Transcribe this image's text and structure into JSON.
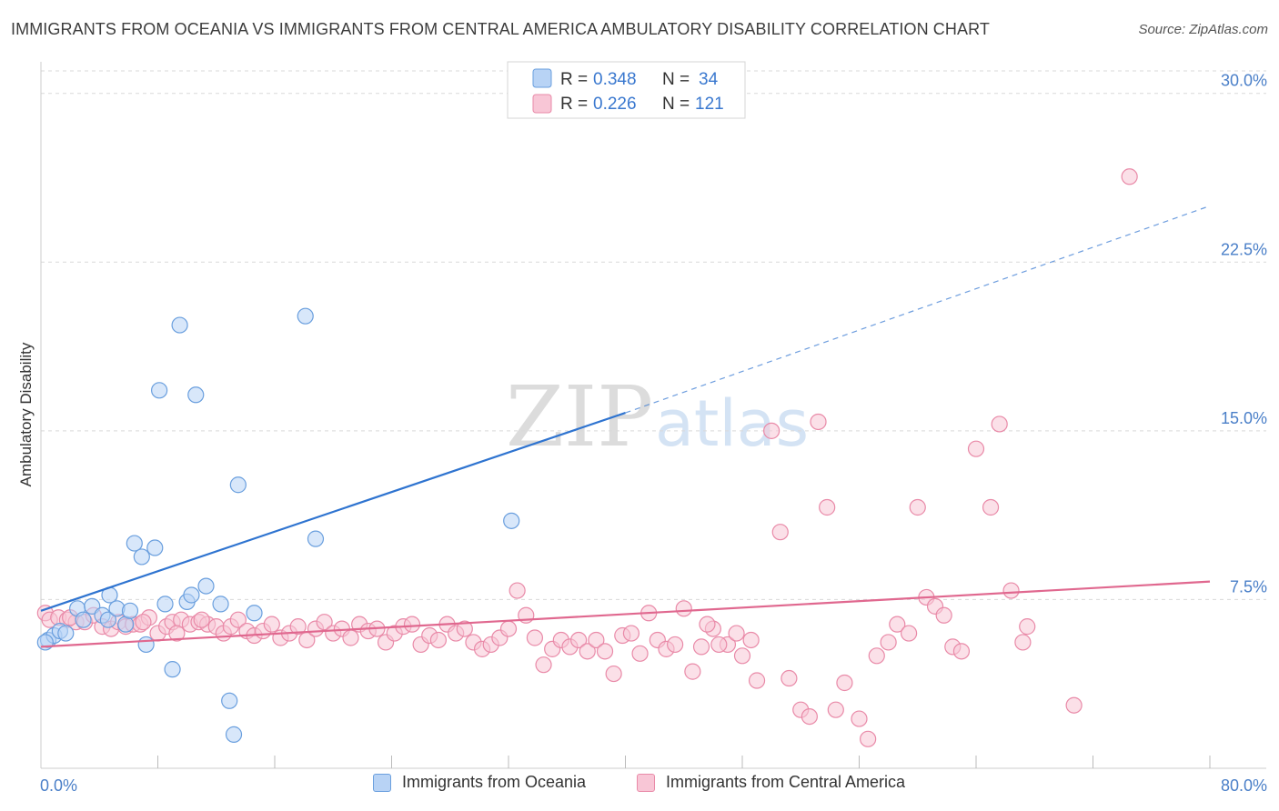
{
  "title": "IMMIGRANTS FROM OCEANIA VS IMMIGRANTS FROM CENTRAL AMERICA AMBULATORY DISABILITY CORRELATION CHART",
  "source": "Source: ZipAtlas.com",
  "watermark": {
    "zip": "ZIP",
    "atlas": "atlas"
  },
  "colors": {
    "oceania_fill": "#b8d3f5",
    "oceania_stroke": "#6a9fde",
    "oceania_line": "#2f74d0",
    "central_fill": "#f8c6d6",
    "central_stroke": "#e98aa8",
    "central_line": "#e0688f",
    "tick_text": "#4a7fc8",
    "grid": "#d9d9d9"
  },
  "legend_top": {
    "rows": [
      {
        "r_label": "R =",
        "r_value": "0.348",
        "n_label": "N =",
        "n_value": "34"
      },
      {
        "r_label": "R =",
        "r_value": "0.226",
        "n_label": "N =",
        "n_value": "121"
      }
    ]
  },
  "chart_data": {
    "type": "scatter",
    "ylabel": "Ambulatory Disability",
    "xlim": [
      0,
      80
    ],
    "ylim": [
      0,
      31
    ],
    "y_ticks": [
      {
        "value": 7.5,
        "label": "7.5%"
      },
      {
        "value": 15.0,
        "label": "15.0%"
      },
      {
        "value": 22.5,
        "label": "22.5%"
      },
      {
        "value": 30.0,
        "label": "30.0%"
      }
    ],
    "x_tick_labels": [
      {
        "value": 0,
        "label": "0.0%"
      },
      {
        "value": 80,
        "label": "80.0%"
      }
    ],
    "x_minor_ticks": [
      8,
      16,
      24,
      32,
      40,
      48,
      56,
      64,
      72,
      80
    ],
    "series": [
      {
        "name": "Immigrants from Oceania",
        "points": [
          [
            0.5,
            5.7
          ],
          [
            0.9,
            5.9
          ],
          [
            1.3,
            6.1
          ],
          [
            1.7,
            6.0
          ],
          [
            2.5,
            7.1
          ],
          [
            2.9,
            6.6
          ],
          [
            3.5,
            7.2
          ],
          [
            4.2,
            6.8
          ],
          [
            4.6,
            6.6
          ],
          [
            4.7,
            7.7
          ],
          [
            5.2,
            7.1
          ],
          [
            5.8,
            6.4
          ],
          [
            6.1,
            7.0
          ],
          [
            6.4,
            10.0
          ],
          [
            6.9,
            9.4
          ],
          [
            7.2,
            5.5
          ],
          [
            7.8,
            9.8
          ],
          [
            8.1,
            16.8
          ],
          [
            8.5,
            7.3
          ],
          [
            9.0,
            4.4
          ],
          [
            9.5,
            19.7
          ],
          [
            10.0,
            7.4
          ],
          [
            10.3,
            7.7
          ],
          [
            10.6,
            16.6
          ],
          [
            11.3,
            8.1
          ],
          [
            12.3,
            7.3
          ],
          [
            12.9,
            3.0
          ],
          [
            13.2,
            1.5
          ],
          [
            13.5,
            12.6
          ],
          [
            14.6,
            6.9
          ],
          [
            18.1,
            20.1
          ],
          [
            18.8,
            10.2
          ],
          [
            32.2,
            11.0
          ],
          [
            0.3,
            5.6
          ]
        ]
      },
      {
        "name": "Immigrants from Central America",
        "points": [
          [
            0.3,
            6.9
          ],
          [
            0.6,
            6.6
          ],
          [
            1.2,
            6.7
          ],
          [
            1.8,
            6.6
          ],
          [
            2.4,
            6.5
          ],
          [
            3.0,
            6.5
          ],
          [
            3.6,
            6.8
          ],
          [
            4.2,
            6.3
          ],
          [
            4.8,
            6.2
          ],
          [
            5.3,
            6.5
          ],
          [
            5.8,
            6.3
          ],
          [
            6.3,
            6.4
          ],
          [
            6.8,
            6.4
          ],
          [
            7.4,
            6.7
          ],
          [
            8.0,
            6.0
          ],
          [
            8.6,
            6.3
          ],
          [
            9.0,
            6.5
          ],
          [
            9.6,
            6.6
          ],
          [
            10.2,
            6.4
          ],
          [
            10.8,
            6.5
          ],
          [
            11.4,
            6.4
          ],
          [
            12.0,
            6.3
          ],
          [
            12.5,
            6.0
          ],
          [
            13.0,
            6.3
          ],
          [
            13.5,
            6.6
          ],
          [
            14.1,
            6.1
          ],
          [
            14.6,
            5.9
          ],
          [
            15.2,
            6.1
          ],
          [
            15.8,
            6.4
          ],
          [
            16.4,
            5.8
          ],
          [
            17.0,
            6.0
          ],
          [
            17.6,
            6.3
          ],
          [
            18.2,
            5.7
          ],
          [
            18.8,
            6.2
          ],
          [
            19.4,
            6.5
          ],
          [
            20.0,
            6.0
          ],
          [
            20.6,
            6.2
          ],
          [
            21.2,
            5.8
          ],
          [
            21.8,
            6.4
          ],
          [
            22.4,
            6.1
          ],
          [
            23.0,
            6.2
          ],
          [
            23.6,
            5.6
          ],
          [
            24.2,
            6.0
          ],
          [
            24.8,
            6.3
          ],
          [
            25.4,
            6.4
          ],
          [
            26.0,
            5.5
          ],
          [
            26.6,
            5.9
          ],
          [
            27.2,
            5.7
          ],
          [
            27.8,
            6.4
          ],
          [
            28.4,
            6.0
          ],
          [
            29.0,
            6.2
          ],
          [
            29.6,
            5.6
          ],
          [
            30.2,
            5.3
          ],
          [
            30.8,
            5.5
          ],
          [
            31.4,
            5.8
          ],
          [
            32.0,
            6.2
          ],
          [
            32.6,
            7.9
          ],
          [
            33.2,
            6.8
          ],
          [
            33.8,
            5.8
          ],
          [
            34.4,
            4.6
          ],
          [
            35.0,
            5.3
          ],
          [
            35.6,
            5.7
          ],
          [
            36.2,
            5.4
          ],
          [
            36.8,
            5.7
          ],
          [
            37.4,
            5.2
          ],
          [
            38.0,
            5.7
          ],
          [
            38.6,
            5.2
          ],
          [
            39.2,
            4.2
          ],
          [
            39.8,
            5.9
          ],
          [
            40.4,
            6.0
          ],
          [
            41.0,
            5.1
          ],
          [
            41.6,
            6.9
          ],
          [
            42.2,
            5.7
          ],
          [
            42.8,
            5.3
          ],
          [
            43.4,
            5.5
          ],
          [
            44.0,
            7.1
          ],
          [
            44.6,
            4.3
          ],
          [
            45.2,
            5.4
          ],
          [
            46.0,
            6.2
          ],
          [
            47.0,
            5.5
          ],
          [
            48.0,
            5.0
          ],
          [
            49.0,
            3.9
          ],
          [
            50.0,
            15.0
          ],
          [
            50.6,
            10.5
          ],
          [
            51.2,
            4.0
          ],
          [
            52.0,
            2.6
          ],
          [
            52.6,
            2.3
          ],
          [
            53.2,
            15.4
          ],
          [
            53.8,
            11.6
          ],
          [
            54.4,
            2.6
          ],
          [
            55.0,
            3.8
          ],
          [
            56.0,
            2.2
          ],
          [
            56.6,
            1.3
          ],
          [
            57.2,
            5.0
          ],
          [
            58.0,
            5.6
          ],
          [
            58.6,
            6.4
          ],
          [
            59.4,
            6.0
          ],
          [
            60.0,
            11.6
          ],
          [
            60.6,
            7.6
          ],
          [
            61.2,
            7.2
          ],
          [
            61.8,
            6.8
          ],
          [
            62.4,
            5.4
          ],
          [
            63.0,
            5.2
          ],
          [
            64.0,
            14.2
          ],
          [
            65.0,
            11.6
          ],
          [
            65.6,
            15.3
          ],
          [
            66.4,
            7.9
          ],
          [
            67.2,
            5.6
          ],
          [
            70.7,
            2.8
          ],
          [
            74.5,
            26.3
          ],
          [
            67.5,
            6.3
          ],
          [
            45.6,
            6.4
          ],
          [
            46.4,
            5.5
          ],
          [
            47.6,
            6.0
          ],
          [
            48.6,
            5.7
          ],
          [
            2.0,
            6.7
          ],
          [
            7.0,
            6.5
          ],
          [
            9.3,
            6.0
          ],
          [
            11.0,
            6.6
          ]
        ]
      }
    ],
    "trend_lines": [
      {
        "series": "Immigrants from Oceania",
        "solid": [
          [
            0,
            7.0
          ],
          [
            40,
            15.8
          ]
        ],
        "dashed": [
          [
            40,
            15.8
          ],
          [
            80,
            25.0
          ]
        ]
      },
      {
        "series": "Immigrants from Central America",
        "solid": [
          [
            0,
            5.4
          ],
          [
            80,
            8.3
          ]
        ]
      }
    ],
    "legend": {
      "position": "top-center",
      "entries": [
        "Immigrants from Oceania",
        "Immigrants from Central America"
      ]
    },
    "grid": true
  }
}
